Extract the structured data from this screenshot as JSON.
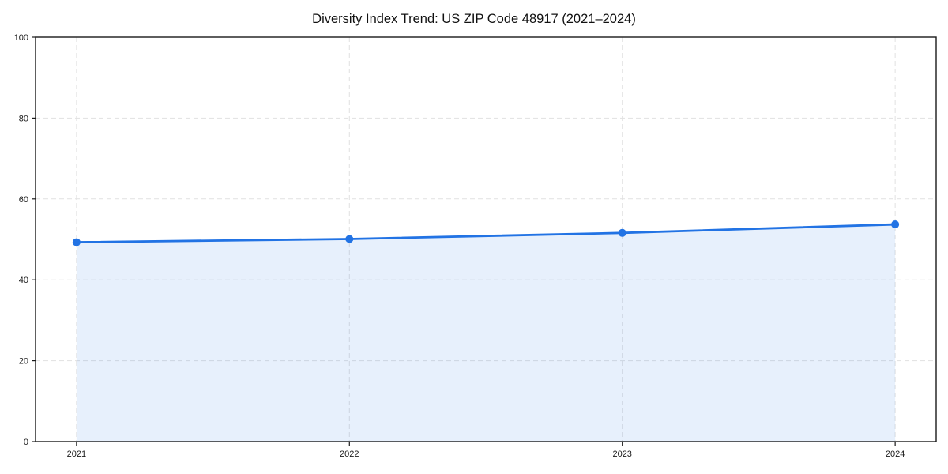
{
  "chart_data": {
    "type": "area",
    "title": "Diversity Index Trend: US ZIP Code 48917 (2021–2024)",
    "categories": [
      "2021",
      "2022",
      "2023",
      "2024"
    ],
    "values": [
      49.3,
      50.1,
      51.6,
      53.7
    ],
    "xlabel": "",
    "ylabel": "",
    "ylim": [
      0,
      100
    ],
    "yticks": [
      0,
      20,
      40,
      60,
      80,
      100
    ],
    "grid": true,
    "grid_style": "dashed",
    "legend": false,
    "marker": "circle",
    "colors": {
      "line": "#2273e4",
      "marker": "#2273e4",
      "fill": "rgba(34,115,228,0.11)",
      "grid": "#e1e1e1",
      "axis": "#1a1a1a",
      "tick_label": "#1a1a1a",
      "title": "#111111",
      "background": "#ffffff"
    }
  }
}
